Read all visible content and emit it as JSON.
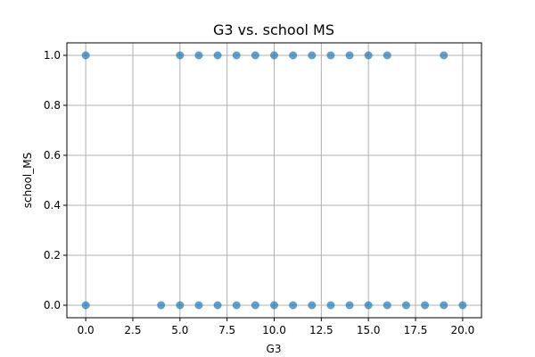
{
  "chart_data": {
    "type": "scatter",
    "title": "G3 vs. school MS",
    "xlabel": "G3",
    "ylabel": "school_MS",
    "xlim": [
      -1,
      21
    ],
    "ylim": [
      -0.05,
      1.05
    ],
    "xticks": [
      0.0,
      2.5,
      5.0,
      7.5,
      10.0,
      12.5,
      15.0,
      17.5,
      20.0
    ],
    "xtick_labels": [
      "0.0",
      "2.5",
      "5.0",
      "7.5",
      "10.0",
      "12.5",
      "15.0",
      "17.5",
      "20.0"
    ],
    "yticks": [
      0.0,
      0.2,
      0.4,
      0.6,
      0.8,
      1.0
    ],
    "ytick_labels": [
      "0.0",
      "0.2",
      "0.4",
      "0.6",
      "0.8",
      "1.0"
    ],
    "grid": true,
    "marker_color": "#1f77b4",
    "series": [
      {
        "points": [
          {
            "x": 0,
            "y": 1
          },
          {
            "x": 5,
            "y": 1
          },
          {
            "x": 6,
            "y": 1
          },
          {
            "x": 7,
            "y": 1
          },
          {
            "x": 8,
            "y": 1
          },
          {
            "x": 9,
            "y": 1
          },
          {
            "x": 10,
            "y": 1
          },
          {
            "x": 11,
            "y": 1
          },
          {
            "x": 12,
            "y": 1
          },
          {
            "x": 13,
            "y": 1
          },
          {
            "x": 14,
            "y": 1
          },
          {
            "x": 15,
            "y": 1
          },
          {
            "x": 16,
            "y": 1
          },
          {
            "x": 19,
            "y": 1
          },
          {
            "x": 0,
            "y": 0
          },
          {
            "x": 4,
            "y": 0
          },
          {
            "x": 5,
            "y": 0
          },
          {
            "x": 6,
            "y": 0
          },
          {
            "x": 7,
            "y": 0
          },
          {
            "x": 8,
            "y": 0
          },
          {
            "x": 9,
            "y": 0
          },
          {
            "x": 10,
            "y": 0
          },
          {
            "x": 11,
            "y": 0
          },
          {
            "x": 12,
            "y": 0
          },
          {
            "x": 13,
            "y": 0
          },
          {
            "x": 14,
            "y": 0
          },
          {
            "x": 15,
            "y": 0
          },
          {
            "x": 16,
            "y": 0
          },
          {
            "x": 17,
            "y": 0
          },
          {
            "x": 18,
            "y": 0
          },
          {
            "x": 19,
            "y": 0
          },
          {
            "x": 20,
            "y": 0
          }
        ]
      }
    ]
  }
}
